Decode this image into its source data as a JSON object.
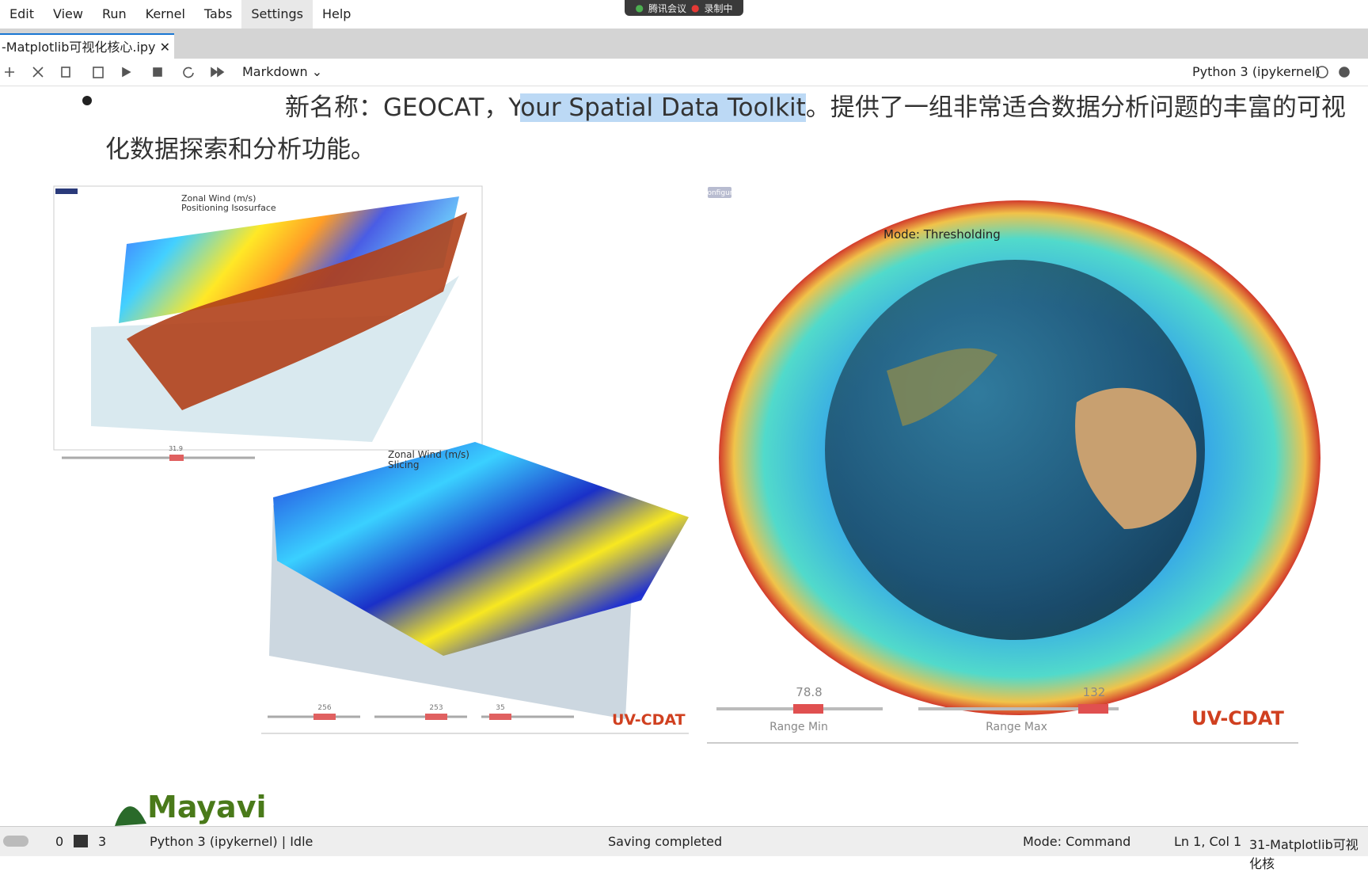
{
  "menu": [
    "Edit",
    "View",
    "Run",
    "Kernel",
    "Tabs",
    "Settings",
    "Help"
  ],
  "meeting": {
    "app": "腾讯会议",
    "status": "录制中"
  },
  "tab": {
    "title": "-Matplotlib可视化核心.ipy"
  },
  "toolbar": {
    "cell_type": "Markdown",
    "kernel": "Python 3 (ipykernel)"
  },
  "cell": {
    "text_before": "新名称：GEOCAT，Y",
    "text_highlight": "our Spatial Data Toolkit",
    "text_after": "。提供了一组非常适合数据分析问题的丰富的可视化数据探索和分析功能。"
  },
  "figures": {
    "isosurface": {
      "title": "Zonal Wind (m/s)",
      "subtitle": "Positioning Isosurface",
      "button": "Configure",
      "slider_value": "31.9"
    },
    "slicing": {
      "title": "Zonal Wind (m/s)",
      "subtitle": "Slicing",
      "slider_values": [
        "256",
        "253",
        "35"
      ],
      "logo": "UV-CDAT"
    },
    "globe": {
      "button": "Configure",
      "mode": "Mode: Thresholding",
      "range_min_value": "78.8",
      "range_max_value": "132",
      "range_min_label": "Range Min",
      "range_max_label": "Range Max",
      "logo": "UV-CDAT"
    },
    "mayavi": {
      "logo": "Mayavi"
    }
  },
  "status": {
    "terminals": "0",
    "kernels": "3",
    "kernel_state": "Python 3 (ipykernel) | Idle",
    "save": "Saving completed",
    "mode": "Mode: Command",
    "position": "Ln 1, Col 1",
    "file": "31-Matplotlib可视化核"
  }
}
